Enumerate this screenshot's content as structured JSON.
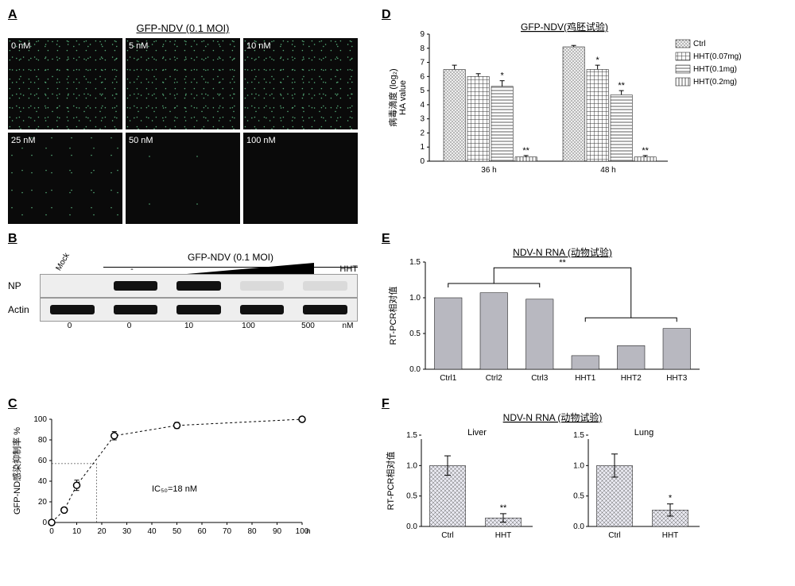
{
  "panelA": {
    "label": "A",
    "title": "GFP-NDV (0.1 MOI)",
    "images": [
      {
        "label": "0 nM",
        "speckle": "speckle"
      },
      {
        "label": "5 nM",
        "speckle": "speckle"
      },
      {
        "label": "10 nM",
        "speckle": "speckle"
      },
      {
        "label": "25 nM",
        "speckle": "speckle-med"
      },
      {
        "label": "50 nM",
        "speckle": "speckle-low"
      },
      {
        "label": "100 nM",
        "speckle": ""
      }
    ]
  },
  "panelB": {
    "label": "B",
    "title": "GFP-NDV (0.1 MOI)",
    "mock_label": "Mock",
    "hht_label": "HHT",
    "rows": [
      {
        "label": "NP",
        "bands": [
          "",
          "band-strong",
          "band-strong",
          "band-faint",
          "band-faint"
        ]
      },
      {
        "label": "Actin",
        "bands": [
          "band-strong",
          "band-strong",
          "band-strong",
          "band-strong",
          "band-strong"
        ]
      }
    ],
    "lane_values": [
      "0",
      "0",
      "10",
      "100",
      "500"
    ],
    "unit": "nM"
  },
  "panelC": {
    "label": "C",
    "ylabel": "GFP-ND感染抑制率 %",
    "xlabel": "nM",
    "ic50": "IC₅₀=18 nM",
    "xmax": 100,
    "ymax": 100,
    "xticks": [
      0,
      10,
      20,
      30,
      40,
      50,
      60,
      70,
      80,
      90,
      100
    ],
    "yticks": [
      0,
      20,
      40,
      60,
      80,
      100
    ],
    "points": [
      {
        "x": 0,
        "y": 0
      },
      {
        "x": 5,
        "y": 12
      },
      {
        "x": 10,
        "y": 36,
        "err": 5
      },
      {
        "x": 25,
        "y": 84,
        "err": 4
      },
      {
        "x": 50,
        "y": 94,
        "err": 3
      },
      {
        "x": 100,
        "y": 100
      }
    ],
    "ic50_x": 18,
    "ic50_y": 57
  },
  "panelD": {
    "label": "D",
    "title": "GFP-NDV(鸡胚试验)",
    "ylabel": "病毒滴度 (log₂)\nHA value",
    "ymax": 9,
    "yticks": [
      0,
      1,
      2,
      3,
      4,
      5,
      6,
      7,
      8,
      9
    ],
    "legend": [
      {
        "label": "Ctrl",
        "class": "bar-ctrl"
      },
      {
        "label": "HHT(0.07mg)",
        "class": "bar-007"
      },
      {
        "label": "HHT(0.1mg)",
        "class": "bar-01"
      },
      {
        "label": "HHT(0.2mg)",
        "class": "bar-02"
      }
    ],
    "groups": [
      {
        "label": "36 h",
        "bars": [
          {
            "v": 6.5,
            "err": 0.3,
            "class": "bar-ctrl"
          },
          {
            "v": 6.0,
            "err": 0.2,
            "class": "bar-007"
          },
          {
            "v": 5.3,
            "err": 0.4,
            "class": "bar-01",
            "sig": "*"
          },
          {
            "v": 0.3,
            "err": 0.1,
            "class": "bar-02",
            "sig": "**"
          }
        ]
      },
      {
        "label": "48 h",
        "bars": [
          {
            "v": 8.1,
            "err": 0.1,
            "class": "bar-ctrl"
          },
          {
            "v": 6.5,
            "err": 0.3,
            "class": "bar-007",
            "sig": "*"
          },
          {
            "v": 4.7,
            "err": 0.3,
            "class": "bar-01",
            "sig": "**"
          },
          {
            "v": 0.3,
            "err": 0.1,
            "class": "bar-02",
            "sig": "**"
          }
        ]
      }
    ]
  },
  "panelE": {
    "label": "E",
    "title": "NDV-N RNA (动物试验)",
    "ylabel": "RT-PCR相对值",
    "ymax": 1.5,
    "yticks": [
      0,
      0.5,
      1.0,
      1.5
    ],
    "sig": "**",
    "bars": [
      {
        "label": "Ctrl1",
        "v": 1.0
      },
      {
        "label": "Ctrl2",
        "v": 1.07
      },
      {
        "label": "Ctrl3",
        "v": 0.98
      },
      {
        "label": "HHT1",
        "v": 0.19
      },
      {
        "label": "HHT2",
        "v": 0.33
      },
      {
        "label": "HHT3",
        "v": 0.57
      }
    ],
    "bracket_ctrl": [
      0,
      1,
      2
    ],
    "bracket_hht": [
      3,
      4,
      5
    ]
  },
  "panelF": {
    "label": "F",
    "title": "NDV-N RNA (动物试验)",
    "ylabel": "RT-PCR相对值",
    "ymax": 1.5,
    "yticks": [
      0,
      0.5,
      1.0,
      1.5
    ],
    "sub": [
      {
        "title": "Liver",
        "bars": [
          {
            "label": "Ctrl",
            "v": 1.0,
            "err": 0.16
          },
          {
            "label": "HHT",
            "v": 0.14,
            "err": 0.07,
            "sig": "**"
          }
        ]
      },
      {
        "title": "Lung",
        "bars": [
          {
            "label": "Ctrl",
            "v": 1.0,
            "err": 0.19
          },
          {
            "label": "HHT",
            "v": 0.27,
            "err": 0.1,
            "sig": "*"
          }
        ]
      }
    ]
  }
}
